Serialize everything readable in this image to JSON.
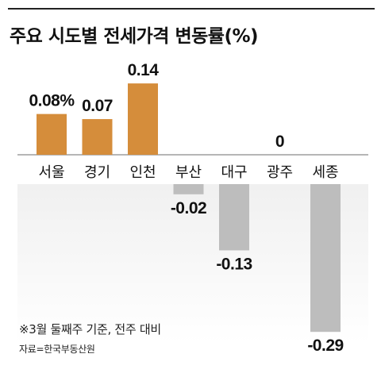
{
  "title": "주요 시도별 전세가격 변동률(%)",
  "note": "※3월 둘째주 기준, 전주 대비",
  "source": "자료=한국부동산원",
  "colors": {
    "positive": "#d58d3b",
    "negative": "#bdbdbd",
    "negative_area": "#f0f0f0",
    "text": "#111111"
  },
  "chart_data": {
    "type": "bar",
    "title": "주요 시도별 전세가격 변동률(%)",
    "categories": [
      "서울",
      "경기",
      "인천",
      "부산",
      "대구",
      "광주",
      "세종"
    ],
    "values": [
      0.08,
      0.07,
      0.14,
      -0.02,
      -0.13,
      0,
      -0.29
    ],
    "value_labels": [
      "0.08%",
      "0.07",
      "0.14",
      "-0.02",
      "-0.13",
      "0",
      "-0.29"
    ],
    "xlabel": "",
    "ylabel": "",
    "ylim": [
      -0.29,
      0.14
    ],
    "grid": false,
    "legend": "none"
  }
}
